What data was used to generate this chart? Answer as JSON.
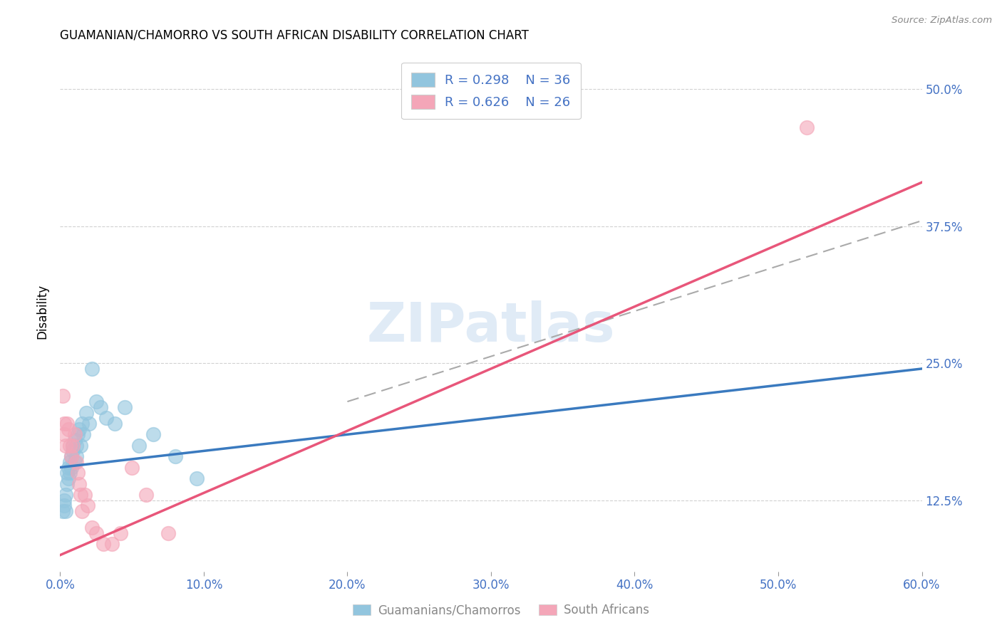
{
  "title": "GUAMANIAN/CHAMORRO VS SOUTH AFRICAN DISABILITY CORRELATION CHART",
  "source": "Source: ZipAtlas.com",
  "ylabel_label": "Disability",
  "xlabel_bottom_1": "Guamanians/Chamorros",
  "xlabel_bottom_2": "South Africans",
  "watermark": "ZIPatlas",
  "blue_R": "R = 0.298",
  "blue_N": "N = 36",
  "pink_R": "R = 0.626",
  "pink_N": "N = 26",
  "xlim": [
    0.0,
    0.6
  ],
  "ylim": [
    0.06,
    0.535
  ],
  "blue_color": "#92c5de",
  "pink_color": "#f4a6b8",
  "blue_line_color": "#3a7abf",
  "pink_line_color": "#e8567a",
  "dash_color": "#aaaaaa",
  "tick_label_color": "#4472c4",
  "title_fontsize": 12,
  "blue_scatter_x": [
    0.002,
    0.003,
    0.003,
    0.004,
    0.004,
    0.005,
    0.005,
    0.006,
    0.006,
    0.007,
    0.007,
    0.008,
    0.008,
    0.009,
    0.009,
    0.01,
    0.01,
    0.011,
    0.011,
    0.012,
    0.013,
    0.014,
    0.015,
    0.016,
    0.018,
    0.02,
    0.022,
    0.025,
    0.028,
    0.032,
    0.038,
    0.045,
    0.055,
    0.065,
    0.08,
    0.095
  ],
  "blue_scatter_y": [
    0.115,
    0.12,
    0.125,
    0.13,
    0.115,
    0.14,
    0.15,
    0.145,
    0.155,
    0.16,
    0.15,
    0.165,
    0.155,
    0.17,
    0.175,
    0.16,
    0.18,
    0.165,
    0.175,
    0.185,
    0.19,
    0.175,
    0.195,
    0.185,
    0.205,
    0.195,
    0.245,
    0.215,
    0.21,
    0.2,
    0.195,
    0.21,
    0.175,
    0.185,
    0.165,
    0.145
  ],
  "pink_scatter_x": [
    0.002,
    0.003,
    0.003,
    0.004,
    0.005,
    0.006,
    0.007,
    0.008,
    0.009,
    0.01,
    0.011,
    0.012,
    0.013,
    0.014,
    0.015,
    0.017,
    0.019,
    0.022,
    0.025,
    0.03,
    0.036,
    0.042,
    0.05,
    0.06,
    0.075,
    0.52
  ],
  "pink_scatter_y": [
    0.22,
    0.195,
    0.185,
    0.175,
    0.195,
    0.19,
    0.175,
    0.165,
    0.175,
    0.185,
    0.16,
    0.15,
    0.14,
    0.13,
    0.115,
    0.13,
    0.12,
    0.1,
    0.095,
    0.085,
    0.085,
    0.095,
    0.155,
    0.13,
    0.095,
    0.465
  ],
  "blue_line_x0": 0.0,
  "blue_line_x1": 0.6,
  "blue_line_y0": 0.155,
  "blue_line_y1": 0.245,
  "pink_line_x0": 0.0,
  "pink_line_x1": 0.6,
  "pink_line_y0": 0.075,
  "pink_line_y1": 0.415,
  "dash_line_x0": 0.2,
  "dash_line_x1": 0.6,
  "dash_line_y0": 0.215,
  "dash_line_y1": 0.38,
  "ytick_vals": [
    0.125,
    0.25,
    0.375,
    0.5
  ],
  "xtick_vals": [
    0.0,
    0.1,
    0.2,
    0.3,
    0.4,
    0.5,
    0.6
  ]
}
